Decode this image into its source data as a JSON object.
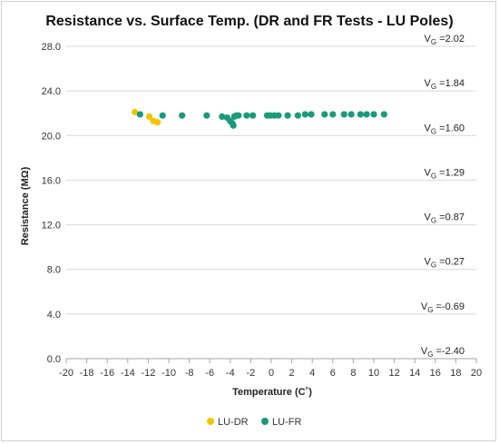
{
  "chart_data": {
    "type": "scatter",
    "title": "Resistance vs. Surface Temp. (DR and FR Tests - LU Poles)",
    "xlabel": "Temperature (C˚)",
    "ylabel": "Resistance (MΩ)",
    "xlim": [
      -20,
      20
    ],
    "ylim": [
      0,
      28
    ],
    "x_ticks": [
      -20,
      -18,
      -16,
      -14,
      -12,
      -10,
      -8,
      -6,
      -4,
      -2,
      0,
      2,
      4,
      6,
      8,
      10,
      12,
      14,
      16,
      18,
      20
    ],
    "y_ticks": [
      "0.0",
      "4.0",
      "8.0",
      "12.0",
      "16.0",
      "20.0",
      "24.0",
      "28.0"
    ],
    "y_tick_values": [
      0,
      4,
      8,
      12,
      16,
      20,
      24,
      28
    ],
    "grid": "y-major",
    "legend_position": "bottom",
    "series": [
      {
        "name": "LU-DR",
        "color": "#f5c400",
        "x": [
          -13.3,
          -11.9,
          -11.5,
          -11.1
        ],
        "y": [
          22.1,
          21.7,
          21.3,
          21.2
        ]
      },
      {
        "name": "LU-FR",
        "color": "#1a9a78",
        "x": [
          -12.8,
          -10.6,
          -8.7,
          -6.3,
          -4.8,
          -4.3,
          -4.0,
          -3.8,
          -3.7,
          -3.6,
          -3.4,
          -3.2,
          -2.4,
          -1.8,
          -0.4,
          -0.1,
          0.3,
          0.7,
          1.6,
          2.6,
          3.3,
          3.9,
          5.2,
          6.0,
          7.1,
          7.8,
          8.7,
          9.3,
          10.0,
          11.0
        ],
        "y": [
          21.9,
          21.8,
          21.8,
          21.8,
          21.7,
          21.6,
          21.3,
          21.1,
          20.9,
          21.7,
          21.8,
          21.8,
          21.8,
          21.8,
          21.8,
          21.8,
          21.8,
          21.8,
          21.8,
          21.8,
          21.9,
          21.9,
          21.9,
          21.9,
          21.9,
          21.9,
          21.9,
          21.9,
          21.9,
          21.9
        ]
      }
    ],
    "annotations": [
      {
        "prefix": "V",
        "sub": "G",
        "text": " =2.02",
        "y": 28.0
      },
      {
        "prefix": "V",
        "sub": "G",
        "text": " =1.84",
        "y": 24.0
      },
      {
        "prefix": "V",
        "sub": "G",
        "text": " =1.60",
        "y": 20.0
      },
      {
        "prefix": "V",
        "sub": "G",
        "text": " =1.29",
        "y": 16.0
      },
      {
        "prefix": "V",
        "sub": "G",
        "text": " =0.87",
        "y": 12.0
      },
      {
        "prefix": "V",
        "sub": "G",
        "text": " =0.27",
        "y": 8.0
      },
      {
        "prefix": "V",
        "sub": "G",
        "text": " =-0.69",
        "y": 4.0
      },
      {
        "prefix": "V",
        "sub": "G",
        "text": " =-2.40",
        "y": 0.0
      }
    ]
  }
}
